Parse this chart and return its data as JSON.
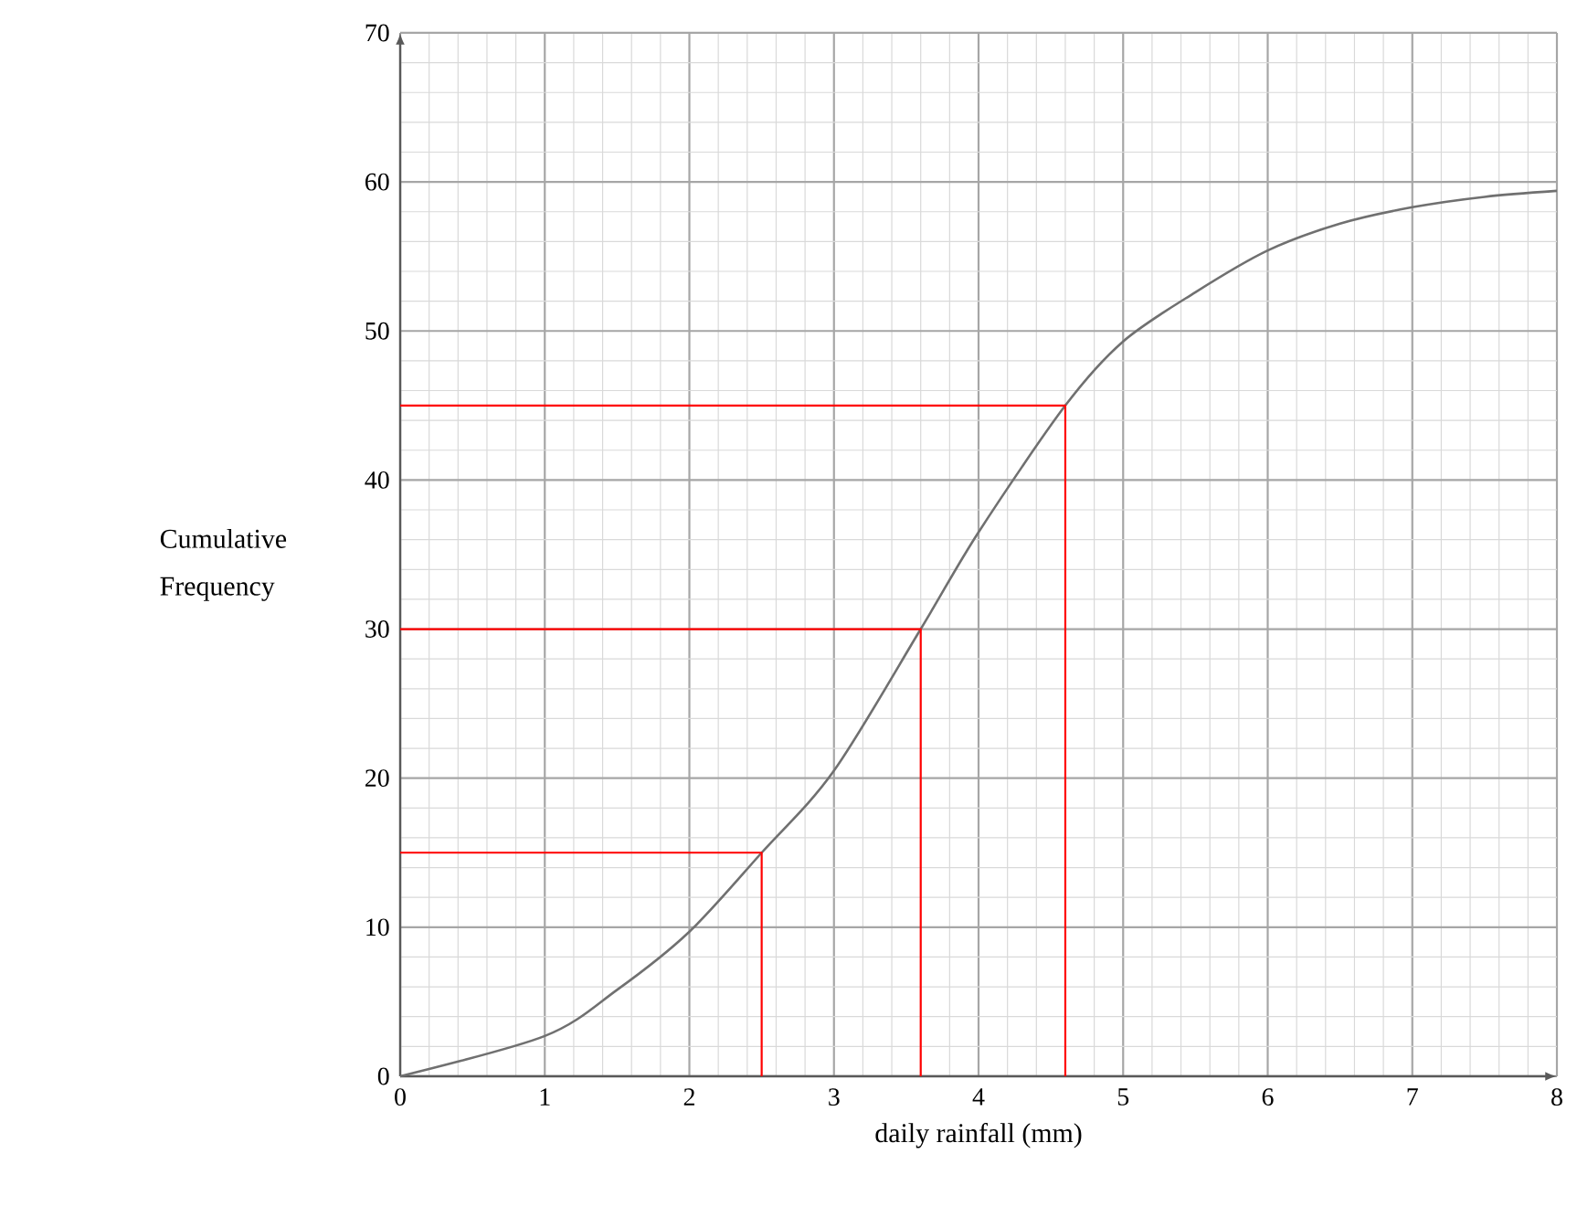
{
  "chart_data": {
    "type": "line",
    "xlabel": "daily rainfall (mm)",
    "ylabel": "Cumulative Frequency",
    "xlim": [
      0,
      8
    ],
    "ylim": [
      0,
      70
    ],
    "xticks": [
      0,
      1,
      2,
      3,
      4,
      5,
      6,
      7,
      8
    ],
    "yticks": [
      0,
      10,
      20,
      30,
      40,
      50,
      60,
      70
    ],
    "grid": true,
    "marker": "none",
    "line_style": "solid",
    "series": [
      {
        "color": "#707070",
        "x": [
          0,
          1,
          1.5,
          2,
          2.5,
          3,
          3.6,
          4,
          4.6,
          5,
          5.5,
          6,
          6.5,
          7,
          7.5,
          8
        ],
        "values": [
          0,
          2.7,
          5.8,
          9.7,
          15,
          20.5,
          30,
          36.5,
          45,
          49.3,
          52.6,
          55.4,
          57.2,
          58.3,
          59,
          59.4
        ]
      },
      {
        "color": "#ff0000",
        "x": [
          0,
          2.5,
          2.5
        ],
        "values": [
          15,
          15,
          0
        ]
      },
      {
        "color": "#ff0000",
        "x": [
          0,
          3.6,
          3.6
        ],
        "values": [
          30,
          30,
          0
        ]
      },
      {
        "color": "#ff0000",
        "x": [
          0,
          4.6,
          4.6
        ],
        "values": [
          45,
          45,
          0
        ]
      }
    ]
  }
}
